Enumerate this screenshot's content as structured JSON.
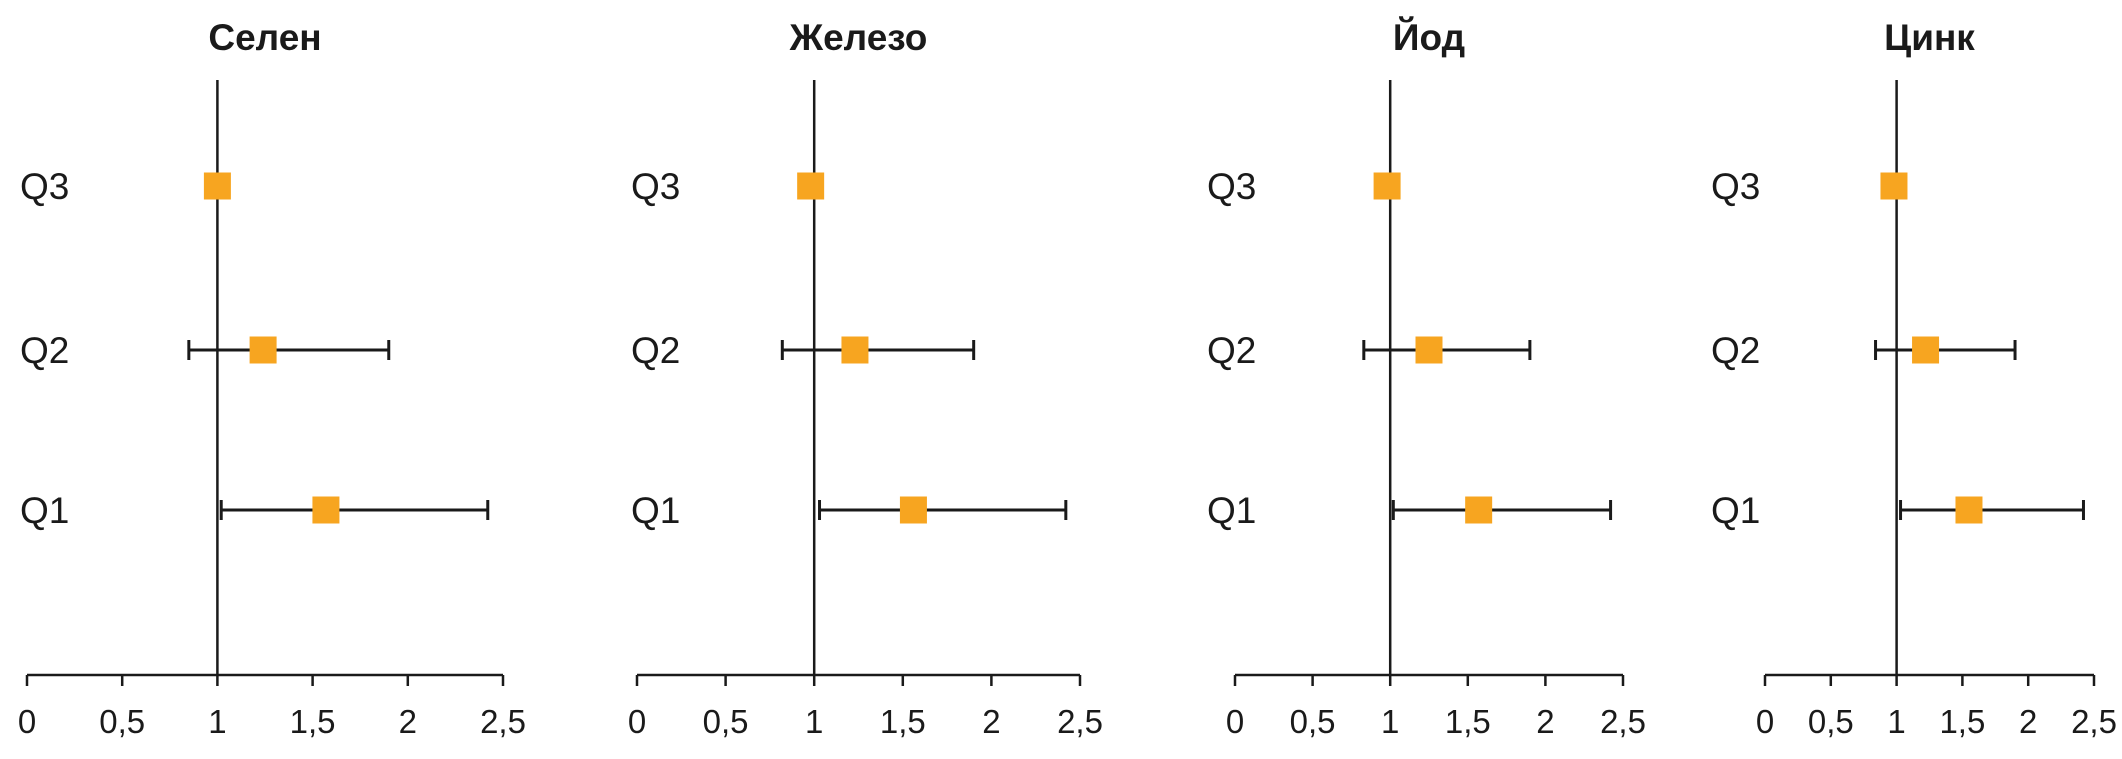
{
  "chart_data": [
    {
      "type": "forest",
      "title": "Селен",
      "categories": [
        "Q3",
        "Q2",
        "Q1"
      ],
      "points": [
        {
          "category": "Q3",
          "estimate": 1.0,
          "lower": null,
          "upper": null
        },
        {
          "category": "Q2",
          "estimate": 1.24,
          "lower": 0.85,
          "upper": 1.9
        },
        {
          "category": "Q1",
          "estimate": 1.57,
          "lower": 1.02,
          "upper": 2.42
        }
      ],
      "xlim": [
        0,
        2.5
      ],
      "xticks": [
        "0",
        "0,5",
        "1",
        "1,5",
        "2",
        "2,5"
      ],
      "reference_line": 1
    },
    {
      "type": "forest",
      "title": "Железо",
      "categories": [
        "Q3",
        "Q2",
        "Q1"
      ],
      "points": [
        {
          "category": "Q3",
          "estimate": 0.98,
          "lower": null,
          "upper": null
        },
        {
          "category": "Q2",
          "estimate": 1.23,
          "lower": 0.82,
          "upper": 1.9
        },
        {
          "category": "Q1",
          "estimate": 1.56,
          "lower": 1.03,
          "upper": 2.42
        }
      ],
      "xlim": [
        0,
        2.5
      ],
      "xticks": [
        "0",
        "0,5",
        "1",
        "1,5",
        "2",
        "2,5"
      ],
      "reference_line": 1
    },
    {
      "type": "forest",
      "title": "Йод",
      "categories": [
        "Q3",
        "Q2",
        "Q1"
      ],
      "points": [
        {
          "category": "Q3",
          "estimate": 0.98,
          "lower": null,
          "upper": null
        },
        {
          "category": "Q2",
          "estimate": 1.25,
          "lower": 0.83,
          "upper": 1.9
        },
        {
          "category": "Q1",
          "estimate": 1.57,
          "lower": 1.02,
          "upper": 2.42
        }
      ],
      "xlim": [
        0,
        2.5
      ],
      "xticks": [
        "0",
        "0,5",
        "1",
        "1,5",
        "2",
        "2,5"
      ],
      "reference_line": 1
    },
    {
      "type": "forest",
      "title": "Цинк",
      "categories": [
        "Q3",
        "Q2",
        "Q1"
      ],
      "points": [
        {
          "category": "Q3",
          "estimate": 0.98,
          "lower": null,
          "upper": null
        },
        {
          "category": "Q2",
          "estimate": 1.22,
          "lower": 0.84,
          "upper": 1.9
        },
        {
          "category": "Q1",
          "estimate": 1.55,
          "lower": 1.03,
          "upper": 2.42
        }
      ],
      "xlim": [
        0,
        2.5
      ],
      "xticks": [
        "0",
        "0,5",
        "1",
        "1,5",
        "2",
        "2,5"
      ],
      "reference_line": 1
    }
  ],
  "colors": {
    "marker": "#f7a520",
    "line": "#1a1a1a"
  }
}
